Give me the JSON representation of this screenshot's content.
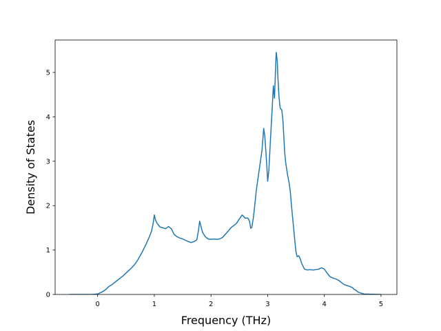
{
  "chart_data": {
    "type": "line",
    "title": "",
    "xlabel": "Frequency (THz)",
    "ylabel": "Density of States",
    "xlim": [
      -0.75,
      5.28
    ],
    "ylim": [
      0,
      5.73
    ],
    "xticks": [
      0,
      1,
      2,
      3,
      4,
      5
    ],
    "yticks": [
      0,
      1,
      2,
      3,
      4,
      5
    ],
    "grid": false,
    "legend": "none",
    "series": [
      {
        "color": "#1f77b4",
        "x": [
          -0.5,
          -0.1,
          0.0,
          0.1,
          0.15,
          0.2,
          0.25,
          0.3,
          0.35,
          0.4,
          0.45,
          0.5,
          0.55,
          0.6,
          0.65,
          0.7,
          0.75,
          0.8,
          0.85,
          0.9,
          0.95,
          0.98,
          1.0,
          1.02,
          1.05,
          1.1,
          1.15,
          1.2,
          1.25,
          1.3,
          1.35,
          1.4,
          1.45,
          1.5,
          1.55,
          1.6,
          1.65,
          1.7,
          1.75,
          1.78,
          1.8,
          1.85,
          1.9,
          1.95,
          2.0,
          2.05,
          2.1,
          2.15,
          2.2,
          2.25,
          2.3,
          2.35,
          2.4,
          2.45,
          2.5,
          2.55,
          2.58,
          2.6,
          2.65,
          2.68,
          2.7,
          2.72,
          2.75,
          2.78,
          2.8,
          2.85,
          2.9,
          2.93,
          2.95,
          2.98,
          3.0,
          3.02,
          3.05,
          3.08,
          3.1,
          3.12,
          3.15,
          3.17,
          3.18,
          3.2,
          3.22,
          3.25,
          3.27,
          3.3,
          3.32,
          3.35,
          3.38,
          3.4,
          3.42,
          3.45,
          3.48,
          3.5,
          3.52,
          3.55,
          3.58,
          3.6,
          3.65,
          3.7,
          3.75,
          3.8,
          3.85,
          3.9,
          3.95,
          4.0,
          4.05,
          4.1,
          4.15,
          4.2,
          4.25,
          4.3,
          4.35,
          4.4,
          4.45,
          4.5,
          4.52,
          4.55,
          4.57,
          4.6,
          4.7,
          5.0
        ],
        "values": [
          0,
          0,
          0.01,
          0.07,
          0.12,
          0.18,
          0.22,
          0.27,
          0.32,
          0.37,
          0.42,
          0.48,
          0.54,
          0.6,
          0.67,
          0.76,
          0.87,
          0.99,
          1.12,
          1.26,
          1.42,
          1.6,
          1.79,
          1.68,
          1.6,
          1.52,
          1.5,
          1.48,
          1.53,
          1.48,
          1.35,
          1.3,
          1.27,
          1.25,
          1.22,
          1.19,
          1.17,
          1.19,
          1.23,
          1.45,
          1.65,
          1.4,
          1.3,
          1.25,
          1.24,
          1.25,
          1.24,
          1.25,
          1.28,
          1.35,
          1.42,
          1.5,
          1.55,
          1.6,
          1.7,
          1.79,
          1.75,
          1.72,
          1.72,
          1.65,
          1.49,
          1.51,
          1.75,
          2.1,
          2.35,
          2.8,
          3.25,
          3.74,
          3.55,
          3.0,
          2.55,
          2.78,
          3.5,
          4.2,
          4.7,
          4.42,
          5.45,
          5.25,
          4.9,
          4.45,
          4.2,
          4.15,
          3.9,
          3.2,
          2.95,
          2.7,
          2.5,
          2.3,
          2.0,
          1.6,
          1.2,
          0.95,
          0.85,
          0.87,
          0.78,
          0.7,
          0.57,
          0.55,
          0.56,
          0.55,
          0.56,
          0.57,
          0.6,
          0.57,
          0.48,
          0.4,
          0.37,
          0.35,
          0.32,
          0.27,
          0.22,
          0.2,
          0.18,
          0.15,
          0.12,
          0.1,
          0.08,
          0.05,
          0.01,
          0
        ]
      }
    ]
  }
}
